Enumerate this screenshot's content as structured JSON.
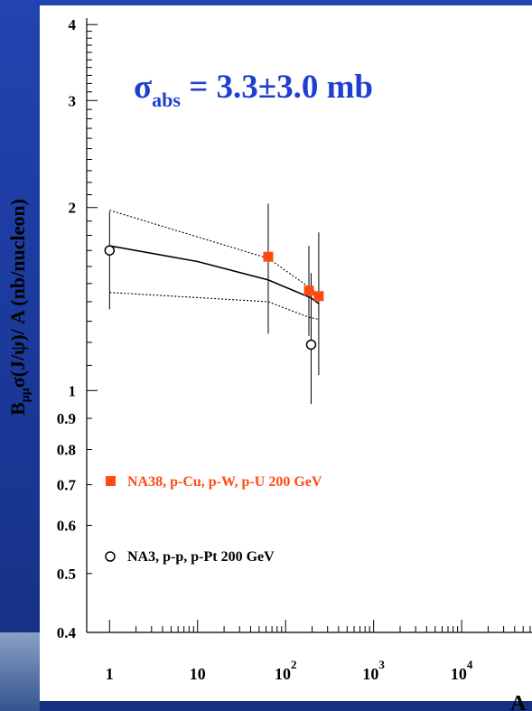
{
  "annotation": {
    "sigma": "σ",
    "sub": "abs",
    "rest": " = 3.3±3.0 mb",
    "color": "#1f3fd0"
  },
  "ylabel": {
    "main": "B",
    "sub": "μμ",
    "rest": "σ(J/ψ)/ A (nb/nucleon)"
  },
  "chart_data": {
    "type": "scatter",
    "xlabel": "A",
    "ylabel": "Bμμσ(J/ψ)/ A (nb/nucleon)",
    "xscale": "log",
    "yscale": "log",
    "xlim": [
      0.55,
      63000
    ],
    "ylim": [
      0.4,
      4.1
    ],
    "xticks": [
      {
        "value": 1,
        "base": "1",
        "exp": ""
      },
      {
        "value": 10,
        "base": "10",
        "exp": ""
      },
      {
        "value": 100,
        "base": "10",
        "exp": "2"
      },
      {
        "value": 1000,
        "base": "10",
        "exp": "3"
      },
      {
        "value": 10000,
        "base": "10",
        "exp": "4"
      }
    ],
    "yticks": [
      "0.4",
      "0.5",
      "0.6",
      "0.7",
      "0.8",
      "0.9",
      "1",
      "2",
      "3",
      "4"
    ],
    "ytick_values": [
      0.4,
      0.5,
      0.6,
      0.7,
      0.8,
      0.9,
      1,
      2,
      3,
      4
    ],
    "series": [
      {
        "name": "NA38, p-Cu, p-W, p-U 200 GeV",
        "marker": "square",
        "color": "#ff4a12",
        "points": [
          {
            "x": 63.5,
            "y": 1.66,
            "ylo": 1.24,
            "yhi": 2.03
          },
          {
            "x": 184,
            "y": 1.46,
            "ylo": 1.23,
            "yhi": 1.73
          },
          {
            "x": 238,
            "y": 1.43,
            "ylo": 1.06,
            "yhi": 1.82
          }
        ]
      },
      {
        "name": "NA3, p-p, p-Pt 200 GeV",
        "marker": "open-circle",
        "color": "#000000",
        "points": [
          {
            "x": 1,
            "y": 1.7,
            "ylo": 1.36,
            "yhi": 1.97
          },
          {
            "x": 195,
            "y": 1.19,
            "ylo": 0.95,
            "yhi": 1.56
          }
        ]
      }
    ],
    "fit_curves": [
      {
        "style": "solid",
        "points": [
          [
            1,
            1.73
          ],
          [
            10,
            1.63
          ],
          [
            63.5,
            1.52
          ],
          [
            195,
            1.42
          ],
          [
            238,
            1.39
          ]
        ]
      },
      {
        "style": "dotted",
        "points": [
          [
            1,
            1.98
          ],
          [
            63.5,
            1.65
          ],
          [
            184,
            1.48
          ],
          [
            238,
            1.44
          ]
        ]
      },
      {
        "style": "dotted",
        "points": [
          [
            1,
            1.45
          ],
          [
            63.5,
            1.4
          ],
          [
            184,
            1.32
          ],
          [
            238,
            1.31
          ]
        ]
      }
    ]
  }
}
